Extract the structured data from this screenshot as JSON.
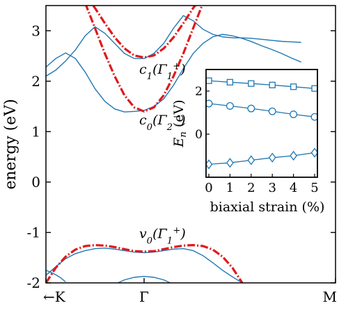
{
  "chart_data": [
    {
      "type": "line",
      "xlabel": "",
      "ylabel": "energy (eV)",
      "ylim": [
        -2,
        3.5
      ],
      "yticks": [
        "-2",
        "-1",
        "0",
        "1",
        "2",
        "3"
      ],
      "xtick_labels": [
        "←K",
        "Γ",
        "M"
      ],
      "grid": false,
      "colors": {
        "band": "#1f77b4",
        "fit": "#e0191b"
      },
      "series": [
        {
          "kind": "band",
          "x": [
            -1,
            -0.9,
            -0.8,
            -0.7,
            -0.6,
            -0.5,
            -0.4,
            -0.3,
            -0.2,
            -0.1,
            0,
            0.1,
            0.2,
            0.3,
            0.4,
            0.5,
            0.6,
            0.7,
            0.8,
            0.9,
            1,
            1.1,
            1.2,
            1.3,
            1.4,
            1.5,
            1.6
          ],
          "y": [
            2.28,
            2.45,
            2.56,
            2.45,
            2.18,
            1.85,
            1.6,
            1.45,
            1.39,
            1.4,
            1.42,
            1.5,
            1.65,
            1.92,
            2.25,
            2.55,
            2.75,
            2.88,
            2.93,
            2.9,
            2.85,
            2.78,
            2.7,
            2.63,
            2.55,
            2.46,
            2.38
          ]
        },
        {
          "kind": "band",
          "x": [
            -1,
            -0.9,
            -0.8,
            -0.7,
            -0.6,
            -0.5,
            -0.4,
            -0.3,
            -0.2,
            -0.1,
            0,
            0.1,
            0.2,
            0.3,
            0.4,
            0.5,
            0.6,
            0.7,
            0.8,
            0.9,
            1,
            1.1,
            1.2,
            1.3,
            1.4,
            1.5,
            1.6
          ],
          "y": [
            2.1,
            2.22,
            2.4,
            2.62,
            2.9,
            3.08,
            2.95,
            2.75,
            2.55,
            2.45,
            2.45,
            2.55,
            2.75,
            3.05,
            3.3,
            3.2,
            3.03,
            2.93,
            2.88,
            2.86,
            2.86,
            2.85,
            2.83,
            2.81,
            2.79,
            2.78,
            2.77
          ]
        },
        {
          "kind": "band",
          "x": [
            -1,
            -0.9,
            -0.8,
            -0.7,
            -0.6,
            -0.5,
            -0.4,
            -0.3,
            -0.2,
            -0.1,
            0,
            0.1,
            0.2,
            0.3,
            0.4,
            0.5,
            0.6,
            0.7,
            0.8,
            0.9,
            1,
            1.05,
            1.1,
            1.15
          ],
          "y": [
            -1.85,
            -1.68,
            -1.52,
            -1.42,
            -1.36,
            -1.32,
            -1.31,
            -1.33,
            -1.36,
            -1.39,
            -1.4,
            -1.39,
            -1.36,
            -1.33,
            -1.32,
            -1.36,
            -1.46,
            -1.6,
            -1.75,
            -1.88,
            -2.0,
            -2.07,
            -2.15,
            -2.2
          ]
        },
        {
          "kind": "band",
          "x": [
            -0.35,
            -0.3,
            -0.2,
            -0.1,
            0,
            0.1,
            0.2,
            0.3,
            0.35
          ],
          "y": [
            -2.1,
            -2.03,
            -1.94,
            -1.89,
            -1.87,
            -1.89,
            -1.94,
            -2.03,
            -2.1
          ]
        },
        {
          "kind": "band",
          "x": [
            -1,
            -0.95,
            -0.9,
            -0.85,
            -0.8
          ],
          "y": [
            -1.75,
            -1.79,
            -1.84,
            -1.9,
            -1.98
          ]
        },
        {
          "kind": "fit",
          "x": [
            -0.6,
            -0.5,
            -0.4,
            -0.3,
            -0.2,
            -0.1,
            0,
            0.1,
            0.2,
            0.3,
            0.4,
            0.5,
            0.6
          ],
          "y": [
            3.7,
            3.45,
            3.15,
            2.87,
            2.65,
            2.51,
            2.47,
            2.51,
            2.65,
            2.87,
            3.15,
            3.45,
            3.7
          ]
        },
        {
          "kind": "fit",
          "x": [
            -0.6,
            -0.5,
            -0.4,
            -0.3,
            -0.2,
            -0.1,
            0,
            0.1,
            0.2,
            0.3,
            0.4,
            0.5,
            0.6
          ],
          "y": [
            3.55,
            3.05,
            2.55,
            2.1,
            1.72,
            1.48,
            1.4,
            1.48,
            1.72,
            2.1,
            2.55,
            3.05,
            3.55
          ]
        },
        {
          "kind": "fit",
          "x": [
            -1,
            -0.9,
            -0.8,
            -0.7,
            -0.6,
            -0.5,
            -0.4,
            -0.3,
            -0.2,
            -0.1,
            0,
            0.1,
            0.2,
            0.3,
            0.4,
            0.5,
            0.6,
            0.7,
            0.8,
            0.9,
            1
          ],
          "y": [
            -2.0,
            -1.7,
            -1.48,
            -1.34,
            -1.27,
            -1.25,
            -1.26,
            -1.29,
            -1.33,
            -1.37,
            -1.38,
            -1.37,
            -1.33,
            -1.29,
            -1.26,
            -1.25,
            -1.27,
            -1.34,
            -1.48,
            -1.7,
            -2.0
          ]
        }
      ],
      "annotations": [
        {
          "text": "c₁(Γ₁⁺)",
          "x": -0.05,
          "y": 2.15
        },
        {
          "text": "c₀(Γ₂⁻)",
          "x": -0.05,
          "y": 1.14
        },
        {
          "text": "v₀(Γ₁⁺)",
          "x": -0.05,
          "y": -1.11
        }
      ]
    },
    {
      "type": "line",
      "xlabel": "biaxial strain (%)",
      "ylabel": "Eₙ (eV)",
      "xlim": [
        0,
        5
      ],
      "ylim": [
        -2,
        3
      ],
      "xticks": [
        "0",
        "1",
        "2",
        "3",
        "4",
        "5"
      ],
      "yticks": [
        "0",
        "2"
      ],
      "series": [
        {
          "marker": "square",
          "x": [
            0,
            1,
            2,
            3,
            4,
            5
          ],
          "y": [
            2.48,
            2.41,
            2.35,
            2.28,
            2.2,
            2.12
          ]
        },
        {
          "marker": "circle",
          "x": [
            0,
            1,
            2,
            3,
            4,
            5
          ],
          "y": [
            1.42,
            1.31,
            1.19,
            1.06,
            0.92,
            0.8
          ]
        },
        {
          "marker": "diamond",
          "x": [
            0,
            1,
            2,
            3,
            4,
            5
          ],
          "y": [
            -1.4,
            -1.33,
            -1.21,
            -1.09,
            -1.0,
            -0.86
          ]
        }
      ]
    }
  ]
}
